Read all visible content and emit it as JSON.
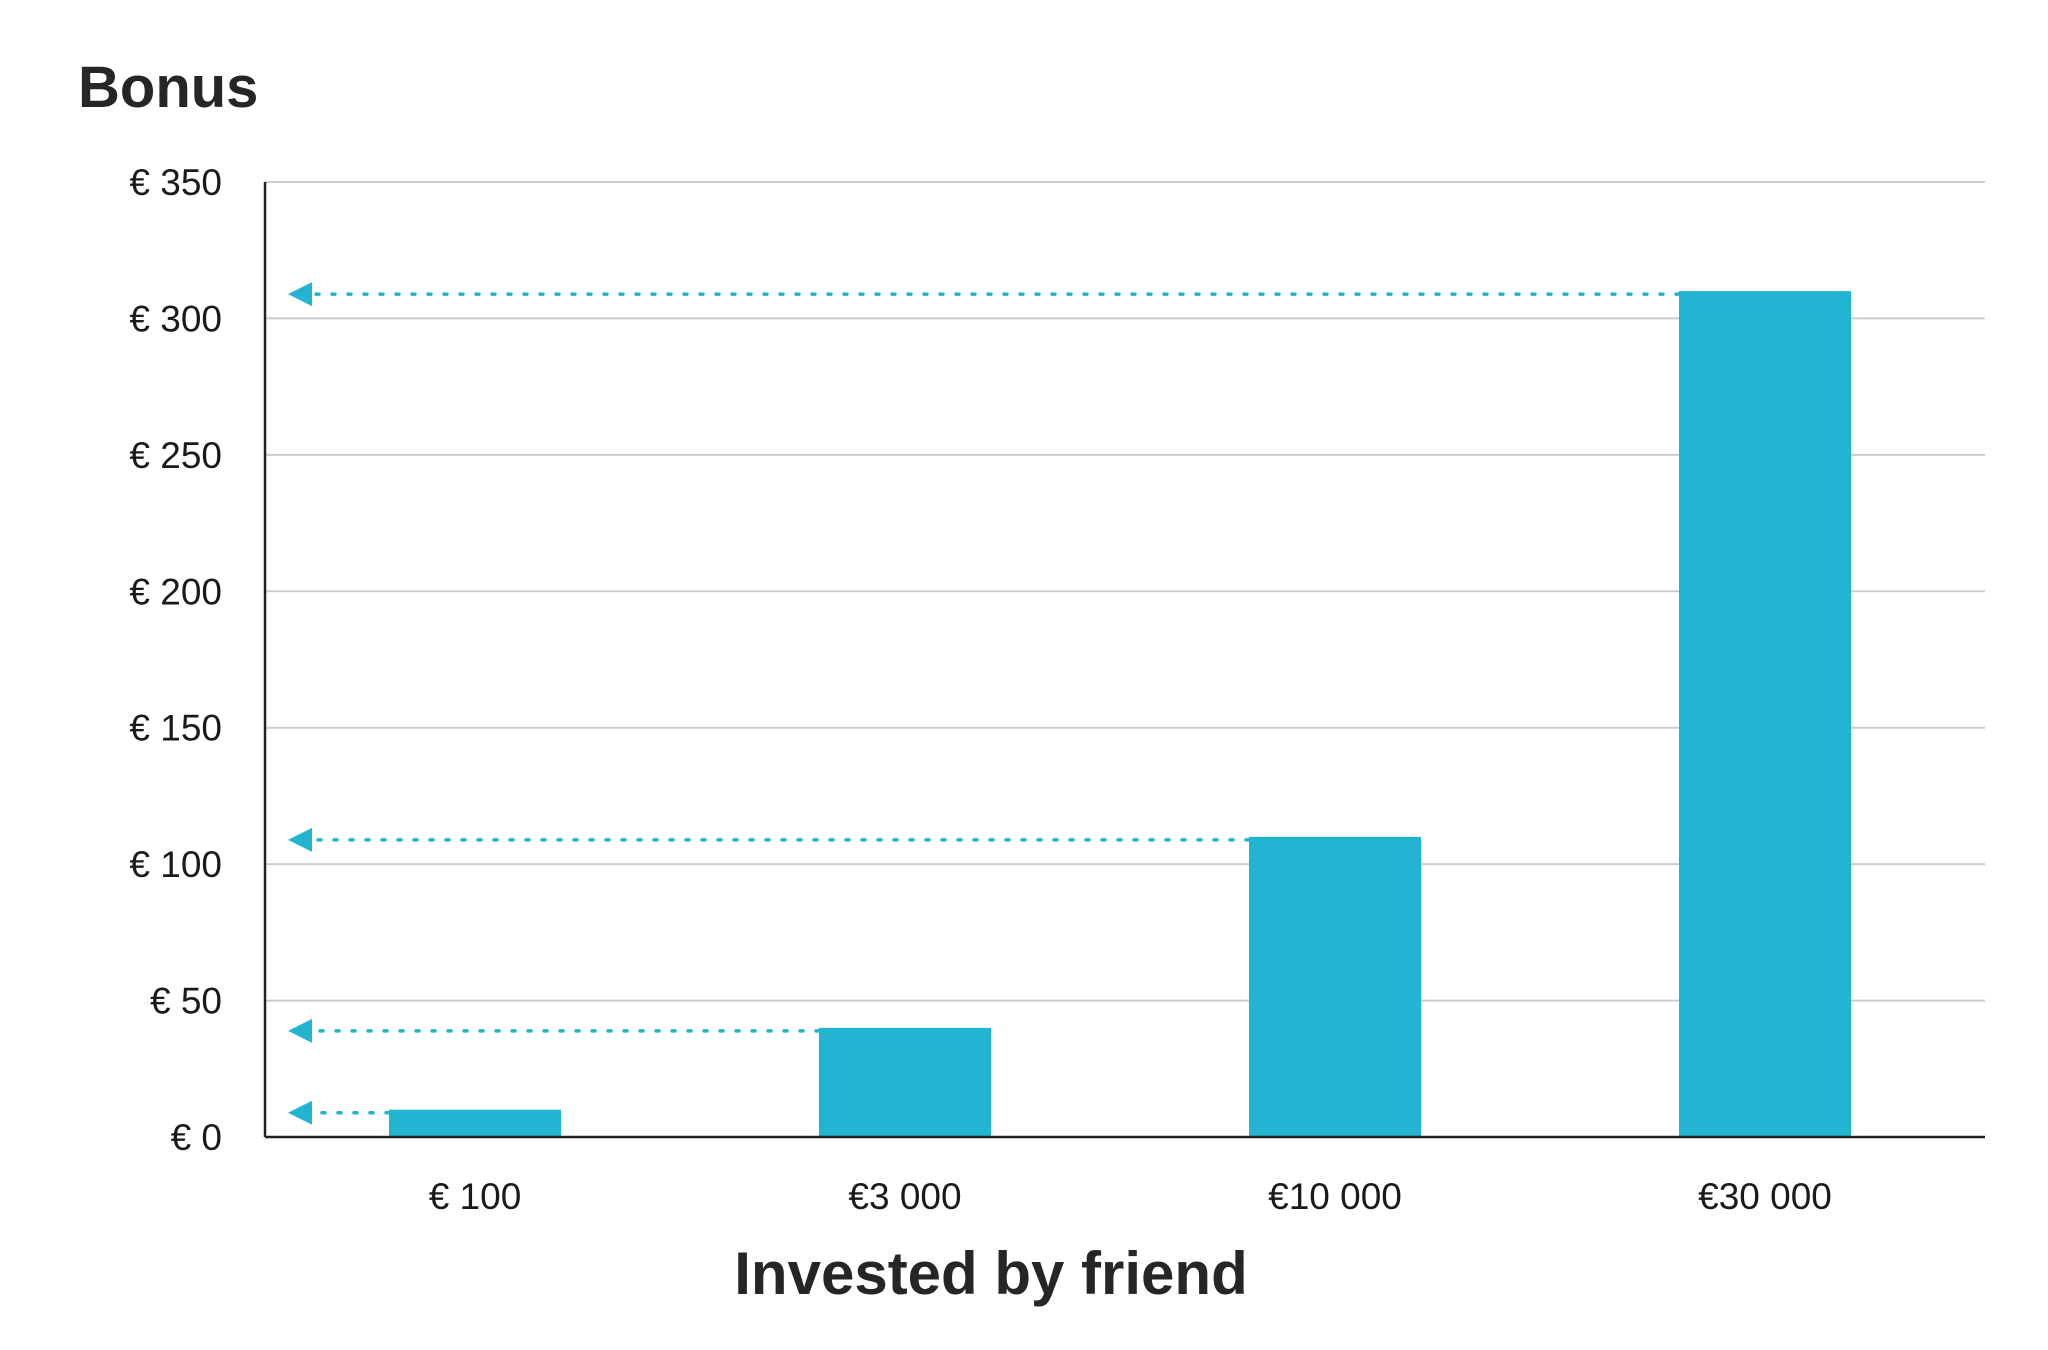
{
  "chart_data": {
    "type": "bar",
    "ylabel": "Bonus",
    "xlabel": "Invested by friend",
    "categories": [
      "€ 100",
      "€3 000",
      "€10 000",
      "€30 000"
    ],
    "values": [
      10,
      40,
      110,
      310
    ],
    "ylim": [
      0,
      350
    ],
    "yticks": [
      0,
      50,
      100,
      150,
      200,
      250,
      300,
      350
    ],
    "ytick_labels": [
      "€ 0",
      "€ 50",
      "€ 100",
      "€ 150",
      "€ 200",
      "€ 250",
      "€ 300",
      "€ 350"
    ],
    "grid": true,
    "annotations": "dotted arrows from each bar top pointing to the y-axis",
    "colors": {
      "bar": "#22B4D1",
      "arrow": "#22B4D1",
      "grid": "#cccccc",
      "axis": "#222222",
      "text": "#262626"
    }
  }
}
